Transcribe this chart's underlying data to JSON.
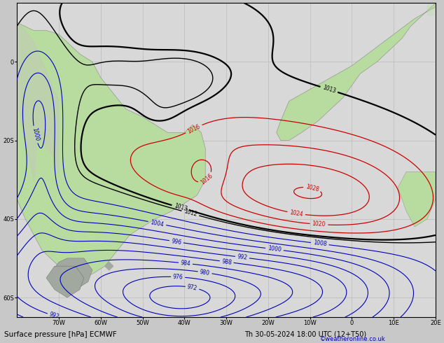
{
  "title": "Surface pressure [hPa] ECMWF",
  "datetime_label": "Th 30-05-2024 18:00 UTC (12+T50)",
  "credit": "©weatheronline.co.uk",
  "bg_ocean": "#d8d8d8",
  "bg_land": "#b8dca0",
  "bg_gray": "#a0a8a0",
  "grid_color": "#bbbbbb",
  "col_black": "#000000",
  "col_red": "#cc0000",
  "col_blue": "#0000bb",
  "col_dkblue": "#0033aa",
  "lon_min": -80,
  "lon_max": 20,
  "lat_min": -65,
  "lat_max": 15,
  "figsize": [
    6.34,
    4.9
  ],
  "dpi": 100,
  "xticks": [
    -70,
    -60,
    -50,
    -40,
    -30,
    -20,
    -10,
    0,
    10,
    20
  ],
  "yticks": [
    -60,
    -40,
    -20,
    0
  ]
}
